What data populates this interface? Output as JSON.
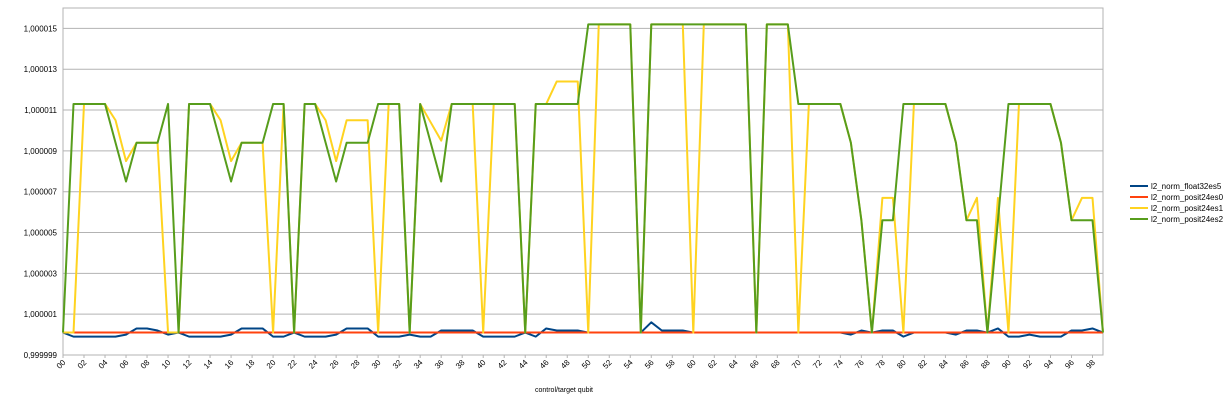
{
  "chart_data": {
    "type": "line",
    "title": "",
    "xlabel": "control/target qubit",
    "ylabel": "",
    "ylim": [
      0.999999,
      1.000016
    ],
    "y_ticks": [
      0.999999,
      1.000001,
      1.000003,
      1.000005,
      1.000007,
      1.000009,
      1.000011,
      1.000013,
      1.000015
    ],
    "y_tick_labels": [
      "0,999999",
      "1,000001",
      "1,000003",
      "1,000005",
      "1,000007",
      "1,000009",
      "1,000011",
      "1,000013",
      "1,000015"
    ],
    "grid": true,
    "legend_position": "right",
    "categories": [
      "00",
      "01",
      "02",
      "03",
      "04",
      "05",
      "06",
      "07",
      "08",
      "09",
      "10",
      "11",
      "12",
      "13",
      "14",
      "15",
      "16",
      "17",
      "18",
      "19",
      "20",
      "21",
      "22",
      "23",
      "24",
      "25",
      "26",
      "27",
      "28",
      "29",
      "30",
      "31",
      "32",
      "33",
      "34",
      "35",
      "36",
      "37",
      "38",
      "39",
      "40",
      "41",
      "42",
      "43",
      "44",
      "45",
      "46",
      "47",
      "48",
      "49",
      "50",
      "51",
      "52",
      "53",
      "54",
      "55",
      "56",
      "57",
      "58",
      "59",
      "60",
      "61",
      "62",
      "63",
      "64",
      "65",
      "66",
      "67",
      "68",
      "69",
      "70",
      "71",
      "72",
      "73",
      "74",
      "75",
      "76",
      "77",
      "78",
      "79",
      "80",
      "81",
      "82",
      "83",
      "84",
      "85",
      "86",
      "87",
      "88",
      "89",
      "90",
      "91",
      "92",
      "93",
      "94",
      "95",
      "96",
      "97",
      "98",
      "99"
    ],
    "x_tick_labels": [
      "00",
      "02",
      "04",
      "06",
      "08",
      "10",
      "12",
      "14",
      "16",
      "18",
      "20",
      "22",
      "24",
      "26",
      "28",
      "30",
      "32",
      "34",
      "36",
      "38",
      "40",
      "42",
      "44",
      "46",
      "48",
      "50",
      "52",
      "54",
      "56",
      "58",
      "60",
      "62",
      "64",
      "66",
      "68",
      "70",
      "72",
      "74",
      "76",
      "78",
      "80",
      "82",
      "84",
      "86",
      "88",
      "90",
      "92",
      "94",
      "96",
      "98"
    ],
    "series": [
      {
        "name": "l2_norm_float32es5",
        "color": "#004586",
        "values": [
          1.0000001,
          0.9999999,
          0.9999999,
          0.9999999,
          0.9999999,
          0.9999999,
          1.0,
          1.0000003,
          1.0000003,
          1.0000002,
          1.0,
          1.0000001,
          0.9999999,
          0.9999999,
          0.9999999,
          0.9999999,
          1.0,
          1.0000003,
          1.0000003,
          1.0000003,
          0.9999999,
          0.9999999,
          1.0000001,
          0.9999999,
          0.9999999,
          0.9999999,
          1.0,
          1.0000003,
          1.0000003,
          1.0000003,
          0.9999999,
          0.9999999,
          0.9999999,
          1.0,
          0.9999999,
          0.9999999,
          1.0000002,
          1.0000002,
          1.0000002,
          1.0000002,
          0.9999999,
          0.9999999,
          0.9999999,
          0.9999999,
          1.0000001,
          0.9999999,
          1.0000003,
          1.0000002,
          1.0000002,
          1.0000002,
          1.0000001,
          1.0000001,
          1.0000001,
          1.0000001,
          1.0000001,
          1.0000001,
          1.0000006,
          1.0000002,
          1.0000002,
          1.0000002,
          1.0000001,
          1.0000001,
          1.0000001,
          1.0000001,
          1.0000001,
          1.0000001,
          1.0000001,
          1.0000001,
          1.0000001,
          1.0000001,
          1.0000001,
          1.0000001,
          1.0000001,
          1.0000001,
          1.0000001,
          1.0,
          1.0000002,
          1.0000001,
          1.0000002,
          1.0000002,
          0.9999999,
          1.0000001,
          1.0000001,
          1.0000001,
          1.0000001,
          1.0,
          1.0000002,
          1.0000002,
          1.0000001,
          1.0000003,
          0.9999999,
          0.9999999,
          1.0,
          0.9999999,
          0.9999999,
          0.9999999,
          1.0000002,
          1.0000002,
          1.0000003,
          1.0000001
        ]
      },
      {
        "name": "l2_norm_posit24es0",
        "color": "#ff420e",
        "values": [
          1.0000001,
          1.0000001,
          1.0000001,
          1.0000001,
          1.0000001,
          1.0000001,
          1.0000001,
          1.0000001,
          1.0000001,
          1.0000001,
          1.0000001,
          1.0000001,
          1.0000001,
          1.0000001,
          1.0000001,
          1.0000001,
          1.0000001,
          1.0000001,
          1.0000001,
          1.0000001,
          1.0000001,
          1.0000001,
          1.0000001,
          1.0000001,
          1.0000001,
          1.0000001,
          1.0000001,
          1.0000001,
          1.0000001,
          1.0000001,
          1.0000001,
          1.0000001,
          1.0000001,
          1.0000001,
          1.0000001,
          1.0000001,
          1.0000001,
          1.0000001,
          1.0000001,
          1.0000001,
          1.0000001,
          1.0000001,
          1.0000001,
          1.0000001,
          1.0000001,
          1.0000001,
          1.0000001,
          1.0000001,
          1.0000001,
          1.0000001,
          1.0000001,
          1.0000001,
          1.0000001,
          1.0000001,
          1.0000001,
          1.0000001,
          1.0000001,
          1.0000001,
          1.0000001,
          1.0000001,
          1.0000001,
          1.0000001,
          1.0000001,
          1.0000001,
          1.0000001,
          1.0000001,
          1.0000001,
          1.0000001,
          1.0000001,
          1.0000001,
          1.0000001,
          1.0000001,
          1.0000001,
          1.0000001,
          1.0000001,
          1.0000001,
          1.0000001,
          1.0000001,
          1.0000001,
          1.0000001,
          1.0000001,
          1.0000001,
          1.0000001,
          1.0000001,
          1.0000001,
          1.0000001,
          1.0000001,
          1.0000001,
          1.0000001,
          1.0000001,
          1.0000001,
          1.0000001,
          1.0000001,
          1.0000001,
          1.0000001,
          1.0000001,
          1.0000001,
          1.0000001,
          1.0000001,
          1.0000001
        ]
      },
      {
        "name": "l2_norm_posit24es1",
        "color": "#ffd320",
        "values": [
          1.0000001,
          1.0000001,
          1.0000113,
          1.0000113,
          1.0000113,
          1.0000105,
          1.0000085,
          1.0000094,
          1.0000094,
          1.0000094,
          1.0000001,
          1.0000001,
          1.0000113,
          1.0000113,
          1.0000113,
          1.0000105,
          1.0000085,
          1.0000094,
          1.0000094,
          1.0000094,
          1.0000001,
          1.0000113,
          1.0000001,
          1.0000113,
          1.0000113,
          1.0000105,
          1.0000085,
          1.0000105,
          1.0000105,
          1.0000105,
          1.0000001,
          1.0000113,
          1.0000113,
          1.0000001,
          1.0000113,
          1.0000104,
          1.0000095,
          1.0000113,
          1.0000113,
          1.0000113,
          1.0000001,
          1.0000113,
          1.0000113,
          1.0000113,
          1.0000001,
          1.0000113,
          1.0000113,
          1.0000124,
          1.0000124,
          1.0000124,
          1.0000001,
          1.0000152,
          1.0000152,
          1.0000152,
          1.0000152,
          1.0000001,
          1.0000152,
          1.0000152,
          1.0000152,
          1.0000152,
          1.0000001,
          1.0000152,
          1.0000152,
          1.0000152,
          1.0000152,
          1.0000152,
          1.0000001,
          1.0000152,
          1.0000152,
          1.0000152,
          1.0000001,
          1.0000113,
          1.0000113,
          1.0000113,
          1.0000113,
          1.0000094,
          1.0000056,
          1.0000001,
          1.0000067,
          1.0000067,
          1.0000001,
          1.0000113,
          1.0000113,
          1.0000113,
          1.0000113,
          1.0000094,
          1.0000056,
          1.0000067,
          1.0000001,
          1.0000067,
          1.0000001,
          1.0000113,
          1.0000113,
          1.0000113,
          1.0000113,
          1.0000094,
          1.0000056,
          1.0000067,
          1.0000067,
          1.0000001
        ]
      },
      {
        "name": "l2_norm_posit24es2",
        "color": "#579d1c",
        "values": [
          1.0000001,
          1.0000113,
          1.0000113,
          1.0000113,
          1.0000113,
          1.0000094,
          1.0000075,
          1.0000094,
          1.0000094,
          1.0000094,
          1.0000113,
          1.0000001,
          1.0000113,
          1.0000113,
          1.0000113,
          1.0000094,
          1.0000075,
          1.0000094,
          1.0000094,
          1.0000094,
          1.0000113,
          1.0000113,
          1.0000001,
          1.0000113,
          1.0000113,
          1.0000094,
          1.0000075,
          1.0000094,
          1.0000094,
          1.0000094,
          1.0000113,
          1.0000113,
          1.0000113,
          1.0000001,
          1.0000113,
          1.0000094,
          1.0000075,
          1.0000113,
          1.0000113,
          1.0000113,
          1.0000113,
          1.0000113,
          1.0000113,
          1.0000113,
          1.0000001,
          1.0000113,
          1.0000113,
          1.0000113,
          1.0000113,
          1.0000113,
          1.0000152,
          1.0000152,
          1.0000152,
          1.0000152,
          1.0000152,
          1.0000001,
          1.0000152,
          1.0000152,
          1.0000152,
          1.0000152,
          1.0000152,
          1.0000152,
          1.0000152,
          1.0000152,
          1.0000152,
          1.0000152,
          1.0000001,
          1.0000152,
          1.0000152,
          1.0000152,
          1.0000113,
          1.0000113,
          1.0000113,
          1.0000113,
          1.0000113,
          1.0000094,
          1.0000056,
          1.0000001,
          1.0000056,
          1.0000056,
          1.0000113,
          1.0000113,
          1.0000113,
          1.0000113,
          1.0000113,
          1.0000094,
          1.0000056,
          1.0000056,
          1.0000001,
          1.0000056,
          1.0000113,
          1.0000113,
          1.0000113,
          1.0000113,
          1.0000113,
          1.0000094,
          1.0000056,
          1.0000056,
          1.0000056,
          1.0000001
        ]
      }
    ]
  }
}
